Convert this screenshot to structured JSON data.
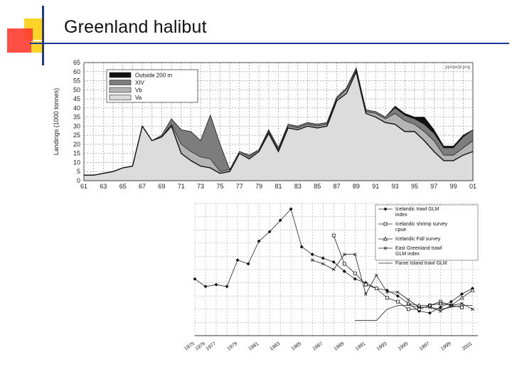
{
  "slide": {
    "title": "Greenland halibut"
  },
  "colors": {
    "accent_yellow": "#ffd42a",
    "accent_red": "#ff3030",
    "accent_blue": "#1a3aa0",
    "outside_200m": "#111111",
    "xiv": "#7d7d7d",
    "vb": "#b4b4b4",
    "va": "#dcdcdc"
  },
  "chart_data": [
    {
      "type": "area",
      "title": "",
      "source_text": "pp/rax/pl.png",
      "ylabel": "Landings (1000 tonnes)",
      "xlabel": "",
      "ylim": [
        0,
        65
      ],
      "yticks": [
        0,
        5,
        10,
        15,
        20,
        25,
        30,
        35,
        40,
        45,
        50,
        55,
        60,
        65
      ],
      "xtick_labels": [
        "61",
        "63",
        "65",
        "67",
        "69",
        "71",
        "73",
        "75",
        "77",
        "79",
        "81",
        "83",
        "85",
        "87",
        "89",
        "91",
        "93",
        "95",
        "97",
        "99",
        "01"
      ],
      "grid": true,
      "legend_position": "top-left",
      "x": [
        1961,
        1962,
        1963,
        1964,
        1965,
        1966,
        1967,
        1968,
        1969,
        1970,
        1971,
        1972,
        1973,
        1974,
        1975,
        1976,
        1977,
        1978,
        1979,
        1980,
        1981,
        1982,
        1983,
        1984,
        1985,
        1986,
        1987,
        1988,
        1989,
        1990,
        1991,
        1992,
        1993,
        1994,
        1995,
        1996,
        1997,
        1998,
        1999,
        2000,
        2001
      ],
      "series": [
        {
          "name": "Va",
          "values": [
            3,
            3,
            4,
            5,
            7,
            8,
            30,
            22,
            24,
            30,
            15,
            11,
            8,
            7,
            4,
            5,
            15,
            12,
            16,
            26,
            16,
            29,
            28,
            30,
            29,
            30,
            44,
            48,
            60,
            37,
            35,
            32,
            31,
            27,
            27,
            22,
            16,
            11,
            11,
            14,
            16
          ]
        },
        {
          "name": "Vb",
          "values": [
            3,
            3,
            4,
            5,
            7,
            8,
            30,
            22,
            24,
            31,
            20,
            16,
            13,
            12,
            5,
            6,
            16,
            13,
            17,
            27,
            17,
            30,
            29,
            31,
            30,
            31,
            45,
            50,
            61,
            38,
            37,
            34,
            37,
            33,
            31,
            27,
            22,
            14,
            14,
            18,
            22
          ]
        },
        {
          "name": "XIV",
          "values": [
            3,
            3,
            4,
            5,
            7,
            8,
            30,
            22,
            25,
            34,
            28,
            27,
            22,
            36,
            20,
            6,
            16,
            14,
            17,
            28,
            18,
            31,
            30,
            32,
            31,
            32,
            46,
            51,
            62,
            39,
            38,
            35,
            40,
            36,
            34,
            31,
            26,
            18,
            18,
            24,
            28
          ]
        },
        {
          "name": "Outside 200 m",
          "values": [
            3,
            3,
            4,
            5,
            7,
            8,
            30,
            22,
            25,
            34,
            28,
            27,
            22,
            36,
            20,
            6,
            16,
            14,
            17,
            28,
            18,
            31,
            30,
            32,
            31,
            32,
            46,
            51,
            62,
            39,
            38,
            35,
            41,
            37,
            35,
            35,
            28,
            19,
            19,
            25,
            28
          ]
        }
      ]
    },
    {
      "type": "line",
      "title": "",
      "xlabel": "",
      "ylabel": "",
      "grid": true,
      "legend_position": "top-right",
      "xtick_labels": [
        "1975",
        "1976",
        "1977",
        "1979",
        "1981",
        "1983",
        "1985",
        "1987",
        "1989",
        "1991",
        "1993",
        "1995",
        "1997",
        "1999",
        "2001"
      ],
      "series": [
        {
          "name": "Icelandic trawl GLM index",
          "marker": "diamond",
          "x": [
            1975,
            1976,
            1977,
            1978,
            1979,
            1980,
            1981,
            1982,
            1983,
            1984,
            1985,
            1986,
            1987,
            1988,
            1989,
            1990,
            1991,
            1992,
            1993,
            1994,
            1995,
            1996,
            1997,
            1998,
            1999,
            2000,
            2001
          ],
          "y": [
            60,
            56,
            57,
            56,
            70,
            68,
            80,
            85,
            91,
            97,
            77,
            73,
            71,
            69,
            64,
            60,
            58,
            55,
            54,
            51,
            47,
            43,
            42,
            45,
            48,
            52,
            55
          ]
        },
        {
          "name": "Icelandic shrimp survey cpue",
          "marker": "square",
          "x": [
            1988,
            1989,
            1990,
            1991,
            1992,
            1993,
            1994,
            1995,
            1996,
            1997,
            1998,
            1999,
            2000
          ],
          "y": [
            83,
            68,
            63,
            57,
            55,
            50,
            48,
            44,
            44,
            46,
            48,
            46,
            45
          ]
        },
        {
          "name": "Icelandic Fall survey",
          "marker": "triangle",
          "x": [
            1995,
            1996,
            1997,
            1998,
            1999,
            2000,
            2001
          ],
          "y": [
            47,
            46,
            46,
            47,
            46,
            50,
            54
          ]
        },
        {
          "name": "East Greenland trawl GLM index",
          "marker": "x",
          "x": [
            1986,
            1987,
            1988,
            1989,
            1990,
            1991,
            1992,
            1993,
            1994,
            1995,
            1996,
            1997,
            1998,
            1999,
            2000,
            2001
          ],
          "y": [
            70,
            68,
            65,
            73,
            73,
            52,
            62,
            53,
            53,
            49,
            45,
            45,
            43,
            46,
            47,
            44
          ]
        },
        {
          "name": "Faroe Island trawl GLM",
          "marker": "none",
          "x": [
            1990,
            1991,
            1992,
            1993,
            1994,
            1995,
            1996,
            1997,
            1998,
            1999,
            2000,
            2001
          ],
          "y": [
            38,
            38,
            38,
            44,
            46,
            46,
            45,
            45,
            44,
            45,
            46,
            46
          ]
        }
      ]
    }
  ]
}
